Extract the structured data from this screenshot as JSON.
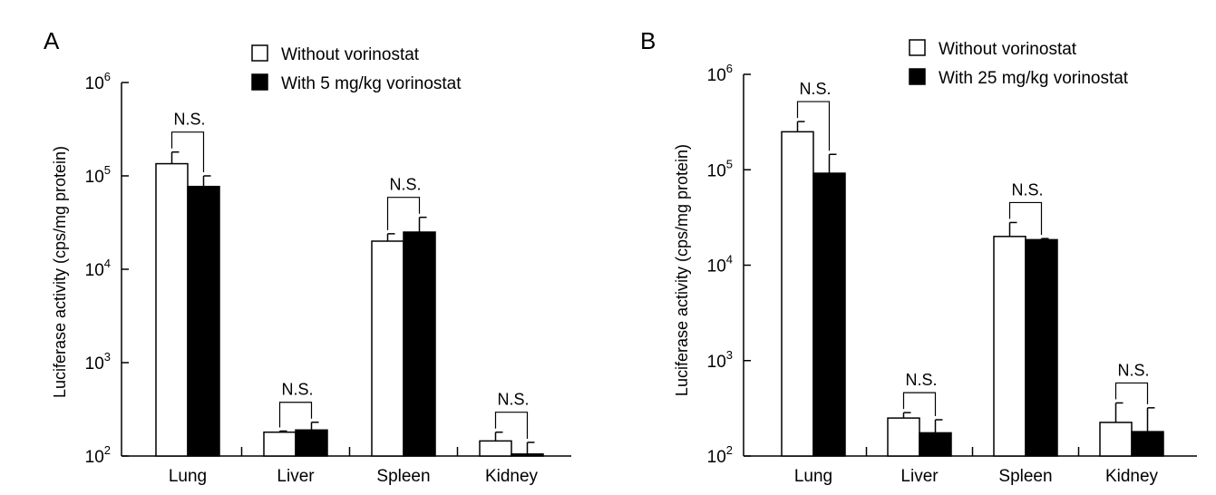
{
  "chart_data": [
    {
      "panel_label": "A",
      "type": "bar",
      "yscale": "log",
      "ylim": [
        100,
        1000000
      ],
      "ylabel": "Luciferase activity (cps/mg protein)",
      "yticks": [
        {
          "value": 100,
          "base": "10",
          "exp": "2"
        },
        {
          "value": 1000,
          "base": "10",
          "exp": "3"
        },
        {
          "value": 10000,
          "base": "10",
          "exp": "4"
        },
        {
          "value": 100000,
          "base": "10",
          "exp": "5"
        },
        {
          "value": 1000000,
          "base": "10",
          "exp": "6"
        }
      ],
      "categories": [
        "Lung",
        "Liver",
        "Spleen",
        "Kidney"
      ],
      "series": [
        {
          "name": "Without vorinostat",
          "fill": "#ffffff",
          "values": [
            135000,
            180,
            20000,
            145
          ],
          "errors": [
            180000,
            185,
            24000,
            180
          ]
        },
        {
          "name": "With 5 mg/kg vorinostat",
          "fill": "#000000",
          "values": [
            77000,
            190,
            25000,
            105
          ],
          "errors": [
            100000,
            230,
            36000,
            140
          ]
        }
      ],
      "annotations": [
        "N.S.",
        "N.S.",
        "N.S.",
        "N.S."
      ]
    },
    {
      "panel_label": "B",
      "type": "bar",
      "yscale": "log",
      "ylim": [
        100,
        1000000
      ],
      "ylabel": "Luciferase activity (cps/mg protein)",
      "yticks": [
        {
          "value": 100,
          "base": "10",
          "exp": "2"
        },
        {
          "value": 1000,
          "base": "10",
          "exp": "3"
        },
        {
          "value": 10000,
          "base": "10",
          "exp": "4"
        },
        {
          "value": 100000,
          "base": "10",
          "exp": "5"
        },
        {
          "value": 1000000,
          "base": "10",
          "exp": "6"
        }
      ],
      "categories": [
        "Lung",
        "Liver",
        "Spleen",
        "Kidney"
      ],
      "series": [
        {
          "name": "Without vorinostat",
          "fill": "#ffffff",
          "values": [
            250000,
            250,
            20000,
            225
          ],
          "errors": [
            320000,
            285,
            28000,
            360
          ]
        },
        {
          "name": "With 25 mg/kg vorinostat",
          "fill": "#000000",
          "values": [
            92000,
            175,
            18500,
            180
          ],
          "errors": [
            145000,
            240,
            19000,
            320
          ]
        }
      ],
      "annotations": [
        "N.S.",
        "N.S.",
        "N.S.",
        "N.S."
      ]
    }
  ]
}
